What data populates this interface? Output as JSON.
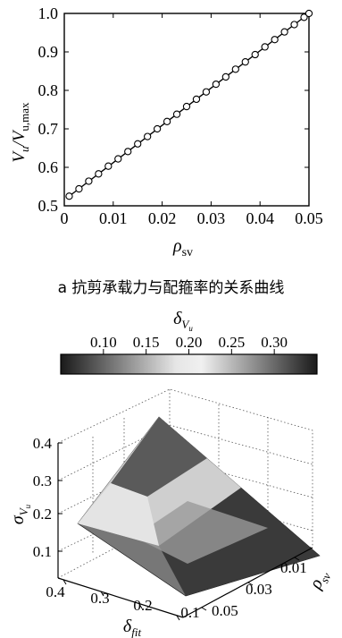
{
  "chart_data": [
    {
      "type": "line",
      "caption": "a 抗剪承载力与配箍率的关系曲线",
      "xlabel": "ρ",
      "xlabel_sub": "sv",
      "ylabel_V1": "V",
      "ylabel_sub1": "u",
      "ylabel_mid": "/V",
      "ylabel_sub2": "u,max",
      "xlim": [
        0,
        0.05
      ],
      "ylim": [
        0.5,
        1.0
      ],
      "xticks": [
        "0",
        "0.01",
        "0.02",
        "0.03",
        "0.04",
        "0.05"
      ],
      "yticks": [
        "0.5",
        "0.6",
        "0.7",
        "0.8",
        "0.9",
        "1.0"
      ],
      "x_start": 0.001,
      "x_step": 0.002,
      "marker": "circle",
      "series": [
        {
          "line": {
            "x": [
              0.001,
              0.05
            ],
            "y": [
              0.525,
              1.0
            ]
          },
          "marker_y": [
            0.525,
            0.544,
            0.564,
            0.583,
            0.603,
            0.622,
            0.641,
            0.661,
            0.68,
            0.7,
            0.719,
            0.738,
            0.758,
            0.777,
            0.796,
            0.816,
            0.835,
            0.855,
            0.874,
            0.893,
            0.913,
            0.932,
            0.952,
            0.971,
            0.99,
            1.0
          ]
        }
      ]
    },
    {
      "type": "surface3d",
      "colorbar_title": "δ",
      "colorbar_title_sub": "V",
      "colorbar_title_subsub": "u",
      "colorbar_range": [
        0.05,
        0.35
      ],
      "colorbar_ticks": [
        "0.10",
        "0.15",
        "0.20",
        "0.25",
        "0.30"
      ],
      "zlabel": "σ",
      "zlabel_sub": "V",
      "zlabel_subsub": "u",
      "xlabel": "δ",
      "xlabel_sub": "fit",
      "ylabel": "ρ",
      "ylabel_sub": "sv",
      "zticks": [
        "0.1",
        "0.2",
        "0.3",
        "0.4"
      ],
      "xticks": [
        "0.4",
        "0.3",
        "0.2",
        "0.1"
      ],
      "yticks": [
        "0.01",
        "0.03",
        "0.05"
      ],
      "colormap": "gray",
      "corners": {
        "back": {
          "value": 0.32
        },
        "left": {
          "value": 0.14
        },
        "right": {
          "value": 0.28
        },
        "front": {
          "value": 0.06
        }
      }
    }
  ]
}
